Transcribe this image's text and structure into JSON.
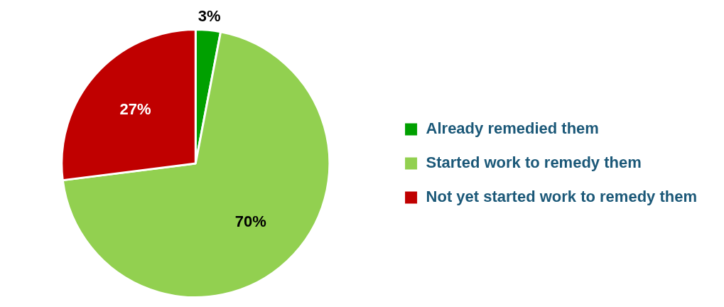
{
  "chart_data": {
    "type": "pie",
    "categories": [
      "Already remedied them",
      "Started work to remedy them",
      "Not yet started work to remedy them"
    ],
    "values": [
      3,
      70,
      27
    ],
    "colors": [
      "#00a000",
      "#92d050",
      "#c00000"
    ],
    "value_labels": [
      "3%",
      "70%",
      "27%"
    ],
    "legend": "right"
  }
}
